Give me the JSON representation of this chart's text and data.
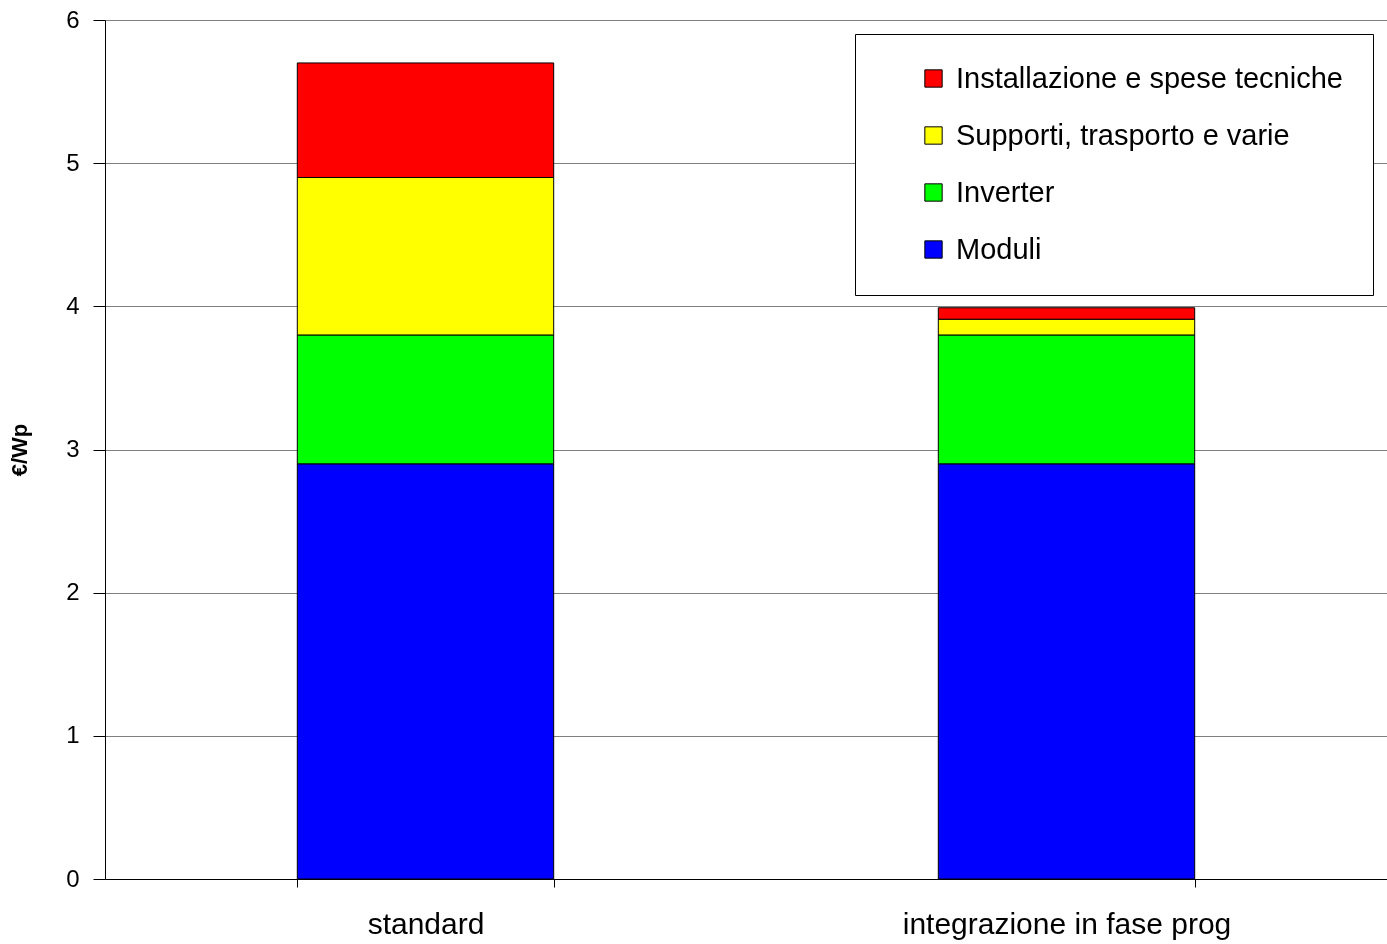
{
  "chart_data": {
    "type": "bar",
    "ylabel": "€/Wp",
    "categories": [
      "standard",
      "integrazione in fase prog"
    ],
    "stacked": true,
    "series": [
      {
        "name": "Moduli",
        "color": "#0000ff",
        "values": [
          2.9,
          2.9
        ]
      },
      {
        "name": "Inverter",
        "color": "#00ff00",
        "values": [
          0.9,
          0.9
        ]
      },
      {
        "name": "Supporti, trasporto e varie",
        "color": "#ffff00",
        "values": [
          1.1,
          0.11
        ]
      },
      {
        "name": "Installazione e spese tecniche",
        "color": "#ff0000",
        "values": [
          0.8,
          0.08
        ]
      }
    ],
    "ylim": [
      0,
      6
    ],
    "yticks": [
      0,
      1,
      2,
      3,
      4,
      5,
      6
    ],
    "grid": "y",
    "legend": "top right"
  }
}
